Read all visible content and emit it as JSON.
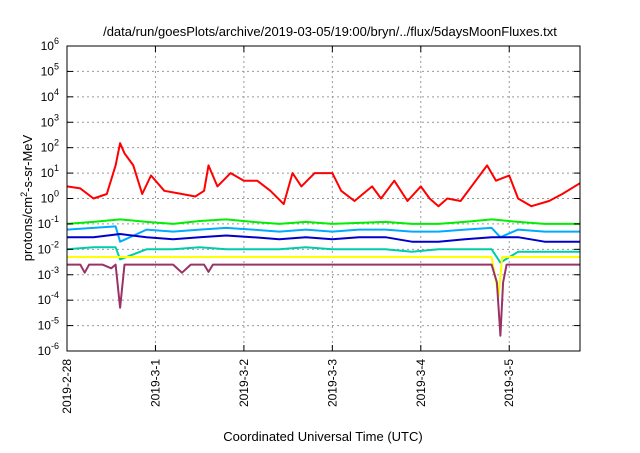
{
  "chart_data": {
    "type": "line",
    "title": "/data/run/goesPlots/archive/2019-03-05/19:00/bryn/../flux/5daysMoonFluxes.txt",
    "xlabel": "Coordinated Universal Time (UTC)",
    "ylabel": "protons/cm²-s-sr-MeV",
    "ylabel_main": "protons/cm",
    "ylabel_sup": "2",
    "ylabel_tail": "-s-sr-MeV",
    "yscale": "log",
    "ylim": [
      1e-06,
      1000000.0
    ],
    "xlim": [
      0,
      5.8
    ],
    "grid": true,
    "legend": "none",
    "x_ticks": [
      {
        "x": 0,
        "label": "2019-2-28"
      },
      {
        "x": 1,
        "label": "2019-3-1"
      },
      {
        "x": 2,
        "label": "2019-3-2"
      },
      {
        "x": 3,
        "label": "2019-3-3"
      },
      {
        "x": 4,
        "label": "2019-3-4"
      },
      {
        "x": 5,
        "label": "2019-3-5"
      }
    ],
    "y_ticks": [
      {
        "exp": -6,
        "base": "10",
        "sup": "-6"
      },
      {
        "exp": -5,
        "base": "10",
        "sup": "-5"
      },
      {
        "exp": -4,
        "base": "10",
        "sup": "-4"
      },
      {
        "exp": -3,
        "base": "10",
        "sup": "-3"
      },
      {
        "exp": -2,
        "base": "10",
        "sup": "-2"
      },
      {
        "exp": -1,
        "base": "10",
        "sup": "-1"
      },
      {
        "exp": 0,
        "base": "10",
        "sup": "0"
      },
      {
        "exp": 1,
        "base": "10",
        "sup": "1"
      },
      {
        "exp": 2,
        "base": "10",
        "sup": "2"
      },
      {
        "exp": 3,
        "base": "10",
        "sup": "3"
      },
      {
        "exp": 4,
        "base": "10",
        "sup": "4"
      },
      {
        "exp": 5,
        "base": "10",
        "sup": "5"
      },
      {
        "exp": 6,
        "base": "10",
        "sup": "6"
      }
    ],
    "series": [
      {
        "color": "#ff0000",
        "x": [
          0,
          0.15,
          0.3,
          0.45,
          0.55,
          0.6,
          0.65,
          0.75,
          0.85,
          0.95,
          1.1,
          1.3,
          1.45,
          1.55,
          1.6,
          1.7,
          1.85,
          2.0,
          2.15,
          2.3,
          2.45,
          2.55,
          2.65,
          2.8,
          3.0,
          3.1,
          3.25,
          3.45,
          3.55,
          3.7,
          3.85,
          4.0,
          4.1,
          4.2,
          4.3,
          4.45,
          4.6,
          4.75,
          4.85,
          5.0,
          5.1,
          5.25,
          5.45,
          5.6,
          5.8
        ],
        "y": [
          3,
          2.5,
          1,
          1.5,
          20,
          150,
          60,
          20,
          1.5,
          8,
          2,
          1.5,
          1.2,
          2,
          20,
          3,
          10,
          5,
          5,
          2,
          0.6,
          10,
          3,
          10,
          10,
          2,
          0.8,
          3,
          1,
          5,
          0.8,
          3,
          1,
          0.5,
          1,
          0.8,
          4,
          20,
          5,
          8,
          1,
          0.5,
          0.8,
          1.5,
          4
        ]
      },
      {
        "color": "#00ee00",
        "x": [
          0,
          0.3,
          0.6,
          0.9,
          1.2,
          1.5,
          1.8,
          2.1,
          2.4,
          2.7,
          3.0,
          3.3,
          3.6,
          3.9,
          4.2,
          4.5,
          4.8,
          5.1,
          5.4,
          5.8
        ],
        "y": [
          0.1,
          0.12,
          0.15,
          0.12,
          0.1,
          0.13,
          0.15,
          0.12,
          0.1,
          0.12,
          0.1,
          0.11,
          0.12,
          0.1,
          0.1,
          0.12,
          0.15,
          0.12,
          0.1,
          0.1
        ]
      },
      {
        "color": "#00aaff",
        "x": [
          0,
          0.3,
          0.55,
          0.6,
          0.9,
          1.2,
          1.5,
          1.8,
          2.1,
          2.4,
          2.7,
          3.0,
          3.3,
          3.6,
          3.9,
          4.2,
          4.5,
          4.8,
          4.9,
          5.1,
          5.4,
          5.8
        ],
        "y": [
          0.06,
          0.07,
          0.08,
          0.02,
          0.06,
          0.05,
          0.06,
          0.07,
          0.06,
          0.05,
          0.06,
          0.05,
          0.06,
          0.06,
          0.05,
          0.05,
          0.06,
          0.07,
          0.03,
          0.06,
          0.05,
          0.05
        ]
      },
      {
        "color": "#0000cc",
        "x": [
          0,
          0.3,
          0.6,
          0.9,
          1.2,
          1.5,
          1.8,
          2.1,
          2.4,
          2.7,
          3.0,
          3.3,
          3.6,
          3.9,
          4.2,
          4.5,
          4.8,
          5.1,
          5.4,
          5.8
        ],
        "y": [
          0.03,
          0.03,
          0.04,
          0.03,
          0.025,
          0.03,
          0.035,
          0.03,
          0.025,
          0.03,
          0.025,
          0.03,
          0.03,
          0.02,
          0.02,
          0.025,
          0.03,
          0.03,
          0.02,
          0.02
        ]
      },
      {
        "color": "#00ccaa",
        "x": [
          0,
          0.3,
          0.55,
          0.6,
          0.9,
          1.2,
          1.5,
          1.8,
          2.1,
          2.4,
          2.7,
          3.0,
          3.3,
          3.6,
          3.9,
          4.2,
          4.5,
          4.8,
          4.9,
          5.1,
          5.4,
          5.8
        ],
        "y": [
          0.01,
          0.012,
          0.012,
          0.004,
          0.01,
          0.01,
          0.012,
          0.01,
          0.01,
          0.01,
          0.012,
          0.01,
          0.01,
          0.01,
          0.008,
          0.01,
          0.01,
          0.01,
          0.003,
          0.008,
          0.008,
          0.008
        ]
      },
      {
        "color": "#ffff00",
        "x": [
          0,
          0.6,
          1.2,
          1.8,
          2.4,
          3.0,
          3.6,
          4.2,
          4.8,
          4.88,
          4.92,
          5.0,
          5.8
        ],
        "y": [
          0.005,
          0.005,
          0.005,
          0.005,
          0.005,
          0.005,
          0.005,
          0.005,
          0.005,
          0.00015,
          0.005,
          0.005,
          0.005
        ]
      },
      {
        "color": "#993366",
        "x": [
          0,
          0.15,
          0.2,
          0.25,
          0.4,
          0.5,
          0.55,
          0.6,
          0.65,
          0.75,
          1.0,
          1.2,
          1.3,
          1.4,
          1.55,
          1.6,
          1.65,
          2.0,
          2.5,
          3.0,
          3.5,
          4.0,
          4.5,
          4.8,
          4.86,
          4.9,
          4.93,
          4.97,
          5.1,
          5.5,
          5.8
        ],
        "y": [
          0.0025,
          0.0025,
          0.0012,
          0.0025,
          0.0025,
          0.0018,
          0.0025,
          5e-05,
          0.0025,
          0.0025,
          0.0025,
          0.0025,
          0.0012,
          0.0025,
          0.0025,
          0.0013,
          0.0025,
          0.0025,
          0.0025,
          0.0025,
          0.0025,
          0.0025,
          0.0025,
          0.0025,
          0.0005,
          4e-06,
          0.0005,
          0.0025,
          0.0025,
          0.0025,
          0.0025
        ]
      }
    ]
  }
}
